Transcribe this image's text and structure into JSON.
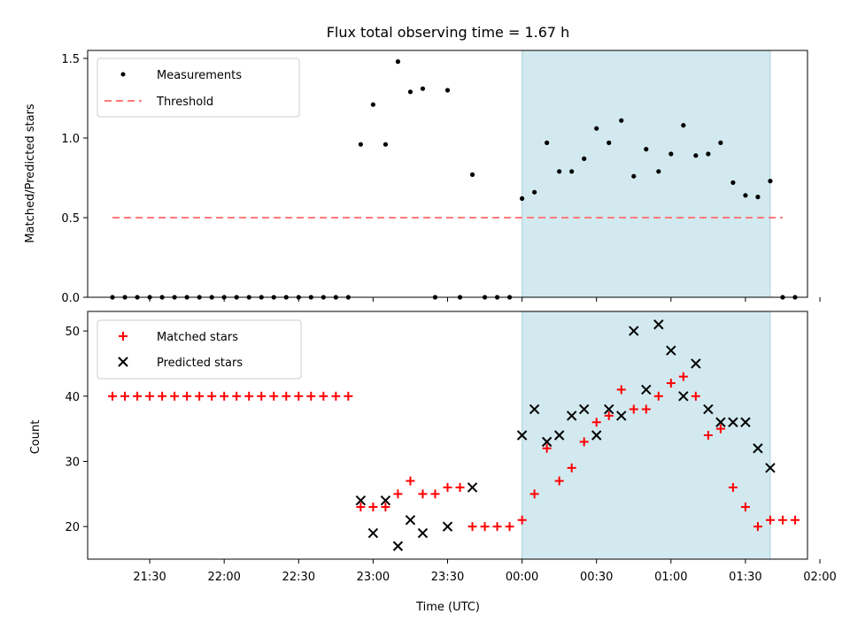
{
  "chart_data": [
    {
      "type": "scatter",
      "title": "Flux total observing time = 1.67 h",
      "xlabel": "",
      "ylabel": "Matched/Predicted stars",
      "ylim": [
        0,
        1.55
      ],
      "yticks": [
        "0.0",
        "0.5",
        "1.0",
        "1.5"
      ],
      "ytick_values": [
        0,
        0.5,
        1.0,
        1.5
      ],
      "legend": [
        "Measurements",
        "Threshold"
      ],
      "legend_position": "top-left",
      "shaded_region": {
        "x_start": "00:00",
        "x_end": "01:40",
        "color": "#d2e9ef"
      },
      "threshold": {
        "value": 0.5,
        "x_start": "21:15",
        "x_end": "01:45",
        "color": "#ff7a7a"
      },
      "series": [
        {
          "name": "Measurements",
          "marker": "dot",
          "color": "#000000",
          "x": [
            "21:15",
            "21:20",
            "21:25",
            "21:30",
            "21:35",
            "21:40",
            "21:45",
            "21:50",
            "21:55",
            "22:00",
            "22:05",
            "22:10",
            "22:15",
            "22:20",
            "22:25",
            "22:30",
            "22:35",
            "22:40",
            "22:45",
            "22:50",
            "22:55",
            "23:00",
            "23:05",
            "23:10",
            "23:15",
            "23:20",
            "23:25",
            "23:30",
            "23:35",
            "23:40",
            "23:45",
            "23:50",
            "23:55",
            "00:00",
            "00:05",
            "00:10",
            "00:15",
            "00:20",
            "00:25",
            "00:30",
            "00:35",
            "00:40",
            "00:45",
            "00:50",
            "00:55",
            "01:00",
            "01:05",
            "01:10",
            "01:15",
            "01:20",
            "01:25",
            "01:30",
            "01:35",
            "01:40",
            "01:45",
            "01:50"
          ],
          "y": [
            0,
            0,
            0,
            0,
            0,
            0,
            0,
            0,
            0,
            0,
            0,
            0,
            0,
            0,
            0,
            0,
            0,
            0,
            0,
            0,
            0.96,
            1.21,
            0.96,
            1.48,
            1.29,
            1.31,
            0,
            1.3,
            0,
            0.77,
            0,
            0,
            0,
            0.62,
            0.66,
            0.97,
            0.79,
            0.79,
            0.87,
            1.06,
            0.97,
            1.11,
            0.76,
            0.93,
            0.79,
            0.9,
            1.08,
            0.89,
            0.9,
            0.97,
            0.72,
            0.64,
            0.63,
            0.73,
            0,
            0
          ]
        }
      ]
    },
    {
      "type": "scatter",
      "title": "",
      "xlabel": "Time (UTC)",
      "ylabel": "Count",
      "ylim": [
        15,
        53
      ],
      "yticks": [
        "20",
        "30",
        "40",
        "50"
      ],
      "ytick_values": [
        20,
        30,
        40,
        50
      ],
      "xticks": [
        "21:30",
        "22:00",
        "22:30",
        "23:00",
        "23:30",
        "00:00",
        "00:30",
        "01:00",
        "01:30",
        "02:00"
      ],
      "legend": [
        "Matched stars",
        "Predicted stars"
      ],
      "legend_position": "top-left",
      "shaded_region": {
        "x_start": "00:00",
        "x_end": "01:40",
        "color": "#d2e9ef"
      },
      "series": [
        {
          "name": "Matched stars",
          "marker": "plus",
          "color": "#ff0000",
          "x": [
            "21:15",
            "21:20",
            "21:25",
            "21:30",
            "21:35",
            "21:40",
            "21:45",
            "21:50",
            "21:55",
            "22:00",
            "22:05",
            "22:10",
            "22:15",
            "22:20",
            "22:25",
            "22:30",
            "22:35",
            "22:40",
            "22:45",
            "22:50",
            "22:55",
            "23:00",
            "23:05",
            "23:10",
            "23:15",
            "23:20",
            "23:25",
            "23:30",
            "23:35",
            "23:40",
            "23:45",
            "23:50",
            "23:55",
            "00:00",
            "00:05",
            "00:10",
            "00:15",
            "00:20",
            "00:25",
            "00:30",
            "00:35",
            "00:40",
            "00:45",
            "00:50",
            "00:55",
            "01:00",
            "01:05",
            "01:10",
            "01:15",
            "01:20",
            "01:25",
            "01:30",
            "01:35",
            "01:40",
            "01:45",
            "01:50"
          ],
          "y": [
            40,
            40,
            40,
            40,
            40,
            40,
            40,
            40,
            40,
            40,
            40,
            40,
            40,
            40,
            40,
            40,
            40,
            40,
            40,
            40,
            23,
            23,
            23,
            25,
            27,
            25,
            25,
            26,
            26,
            20,
            20,
            20,
            20,
            21,
            25,
            32,
            27,
            29,
            33,
            36,
            37,
            41,
            38,
            38,
            40,
            42,
            43,
            40,
            34,
            35,
            26,
            23,
            20,
            21,
            21,
            21
          ]
        },
        {
          "name": "Predicted stars",
          "marker": "x",
          "color": "#000000",
          "x": [
            "22:55",
            "23:00",
            "23:05",
            "23:10",
            "23:15",
            "23:20",
            "23:30",
            "23:40",
            "00:00",
            "00:05",
            "00:10",
            "00:15",
            "00:20",
            "00:25",
            "00:30",
            "00:35",
            "00:40",
            "00:45",
            "00:50",
            "00:55",
            "01:00",
            "01:05",
            "01:10",
            "01:15",
            "01:20",
            "01:25",
            "01:30",
            "01:35",
            "01:40"
          ],
          "y": [
            24,
            19,
            24,
            17,
            21,
            19,
            20,
            26,
            34,
            38,
            33,
            34,
            37,
            38,
            34,
            38,
            37,
            50,
            41,
            51,
            47,
            40,
            45,
            38,
            36,
            36,
            36,
            32,
            29
          ]
        }
      ]
    }
  ]
}
